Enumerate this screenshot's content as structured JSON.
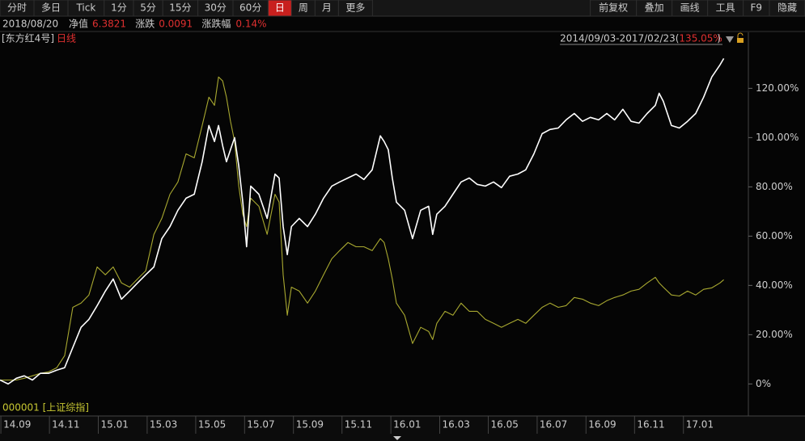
{
  "toolbar": {
    "left": [
      "分时",
      "多日",
      "Tick",
      "1分",
      "5分",
      "15分",
      "30分",
      "60分",
      "日",
      "周",
      "月",
      "更多"
    ],
    "active": "日",
    "right": [
      "前复权",
      "叠加",
      "画线",
      "工具",
      "F9",
      "隐藏"
    ]
  },
  "info": {
    "date": "2018/08/20",
    "items": [
      {
        "label": "净值",
        "value": "6.3821"
      },
      {
        "label": "涨跌",
        "value": "0.0091"
      },
      {
        "label": "涨跌幅",
        "value": "0.14%"
      }
    ]
  },
  "chart_data": {
    "type": "line",
    "period": "日线",
    "range_parts": [
      "2014/09/03-2017/02/23(",
      "135.05%",
      ")"
    ],
    "x": [
      2014.664,
      2014.692,
      2014.72,
      2014.747,
      2014.775,
      2014.802,
      2014.83,
      2014.858,
      2014.885,
      2014.913,
      2014.941,
      2014.968,
      2014.996,
      2015.024,
      2015.051,
      2015.079,
      2015.107,
      2015.134,
      2015.162,
      2015.19,
      2015.217,
      2015.245,
      2015.272,
      2015.3,
      2015.328,
      2015.355,
      2015.378,
      2015.397,
      2015.411,
      2015.425,
      2015.438,
      2015.452,
      2015.466,
      2015.48,
      2015.494,
      2015.507,
      2015.521,
      2015.549,
      2015.577,
      2015.604,
      2015.618,
      2015.632,
      2015.646,
      2015.66,
      2015.687,
      2015.715,
      2015.742,
      2015.77,
      2015.798,
      2015.825,
      2015.853,
      2015.881,
      2015.908,
      2015.936,
      2015.964,
      2015.977,
      2015.991,
      2016.005,
      2016.019,
      2016.047,
      2016.074,
      2016.102,
      2016.129,
      2016.143,
      2016.157,
      2016.185,
      2016.212,
      2016.24,
      2016.268,
      2016.295,
      2016.323,
      2016.351,
      2016.378,
      2016.406,
      2016.434,
      2016.461,
      2016.489,
      2016.517,
      2016.544,
      2016.572,
      2016.599,
      2016.627,
      2016.655,
      2016.682,
      2016.71,
      2016.738,
      2016.765,
      2016.793,
      2016.821,
      2016.848,
      2016.876,
      2016.904,
      2016.917,
      2016.931,
      2016.959,
      2016.986,
      2017.014,
      2017.042,
      2017.069,
      2017.097,
      2017.125,
      2017.138
    ],
    "series": [
      {
        "name": "[东方红4号]",
        "color": "#ffffff",
        "values": [
          1.6,
          0,
          2.3,
          3.3,
          1.6,
          4.3,
          4.3,
          5.6,
          6.6,
          14.8,
          23.0,
          26.2,
          31.8,
          37.7,
          42.6,
          34.4,
          37.7,
          41.0,
          44.3,
          47.5,
          59.0,
          63.9,
          70.5,
          75.4,
          77.0,
          90.2,
          104.9,
          98.4,
          104.9,
          96.7,
          90.2,
          95.1,
          100.0,
          88.5,
          73.8,
          55.7,
          80.3,
          77.0,
          67.2,
          85.2,
          83.6,
          63.9,
          52.5,
          63.9,
          67.2,
          63.9,
          68.9,
          75.4,
          80.3,
          82.0,
          83.6,
          85.2,
          83.0,
          86.9,
          100.7,
          98.4,
          95.1,
          83.6,
          73.8,
          70.5,
          59.0,
          70.5,
          72.1,
          60.7,
          68.9,
          72.1,
          77.0,
          82.0,
          83.6,
          81.0,
          80.3,
          82.0,
          79.7,
          84.3,
          85.2,
          86.9,
          93.4,
          101.6,
          103.3,
          103.9,
          107.2,
          109.8,
          106.6,
          108.2,
          107.2,
          109.8,
          107.2,
          111.5,
          106.6,
          105.9,
          109.8,
          113.1,
          118.0,
          114.8,
          104.9,
          103.9,
          106.6,
          109.8,
          116.4,
          124.6,
          129.5,
          132.1
        ]
      },
      {
        "name": "000001 [上证综指]",
        "color": "#a8a830",
        "values": [
          1.6,
          1.6,
          1.6,
          2.3,
          3.3,
          4.3,
          4.9,
          6.6,
          11.5,
          31.1,
          32.8,
          36.1,
          47.5,
          44.3,
          47.5,
          41.0,
          39.3,
          42.6,
          45.9,
          60.7,
          67.2,
          77.0,
          82.0,
          93.4,
          91.8,
          104.9,
          116.4,
          113.1,
          124.6,
          123.0,
          116.4,
          106.6,
          98.4,
          80.3,
          68.9,
          63.9,
          75.4,
          72.1,
          60.7,
          77.0,
          73.8,
          44.3,
          27.9,
          39.3,
          37.7,
          32.8,
          37.7,
          44.3,
          50.8,
          54.1,
          57.4,
          55.7,
          55.7,
          54.1,
          59.0,
          57.4,
          50.8,
          42.6,
          32.8,
          27.9,
          16.4,
          23.0,
          21.3,
          18.0,
          24.6,
          29.5,
          27.9,
          32.8,
          29.5,
          29.5,
          26.2,
          24.6,
          23.0,
          24.6,
          26.2,
          24.6,
          27.9,
          31.1,
          32.8,
          31.1,
          31.8,
          35.1,
          34.4,
          32.8,
          31.8,
          33.8,
          35.1,
          36.1,
          37.7,
          38.4,
          41.0,
          43.3,
          41.0,
          39.3,
          36.1,
          35.7,
          37.7,
          36.1,
          38.4,
          39.0,
          41.0,
          42.3
        ]
      }
    ],
    "xlim": [
      2014.664,
      2017.222
    ],
    "xticks": [
      {
        "value": 2014.667,
        "label": "14.09"
      },
      {
        "value": 2014.833,
        "label": "14.11"
      },
      {
        "value": 2015.0,
        "label": "15.01"
      },
      {
        "value": 2015.167,
        "label": "15.03"
      },
      {
        "value": 2015.333,
        "label": "15.05"
      },
      {
        "value": 2015.5,
        "label": "15.07"
      },
      {
        "value": 2015.667,
        "label": "15.09"
      },
      {
        "value": 2015.833,
        "label": "15.11"
      },
      {
        "value": 2016.0,
        "label": "16.01"
      },
      {
        "value": 2016.167,
        "label": "16.03"
      },
      {
        "value": 2016.333,
        "label": "16.05"
      },
      {
        "value": 2016.5,
        "label": "16.07"
      },
      {
        "value": 2016.667,
        "label": "16.09"
      },
      {
        "value": 2016.833,
        "label": "16.11"
      },
      {
        "value": 2017.0,
        "label": "17.01"
      }
    ],
    "ylim": [
      -13,
      137
    ],
    "yticks": [
      {
        "value": 0,
        "label": "0%"
      },
      {
        "value": 20,
        "label": "20.00%"
      },
      {
        "value": 40,
        "label": "40.00%"
      },
      {
        "value": 60,
        "label": "60.00%"
      },
      {
        "value": 80,
        "label": "80.00%"
      },
      {
        "value": 100,
        "label": "100.00%"
      },
      {
        "value": 120,
        "label": "120.00%"
      }
    ]
  }
}
